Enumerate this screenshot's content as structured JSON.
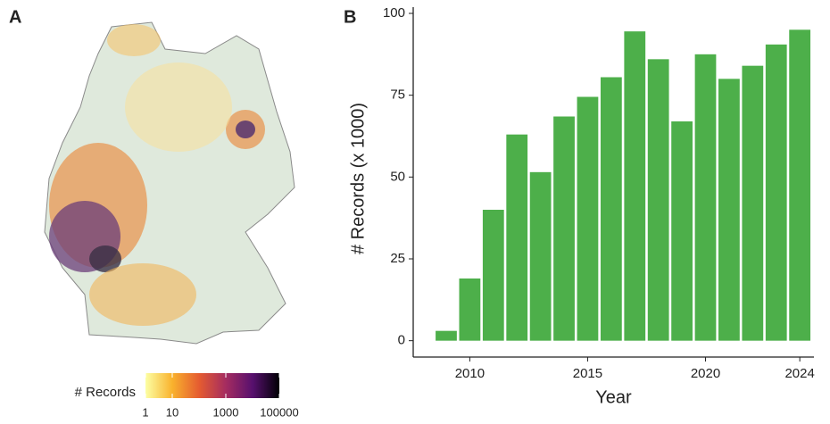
{
  "chart_data": [
    {
      "type": "hexmap",
      "panel": "A",
      "legend": {
        "title": "# Records",
        "lim": [
          1,
          100000
        ],
        "ticks": [
          1,
          10,
          1000,
          100000
        ],
        "log": true,
        "colors": [
          "#fcffa4",
          "#f9b22d",
          "#e55c30",
          "#a52c60",
          "#57106e",
          "#000004"
        ]
      }
    },
    {
      "type": "bar",
      "panel": "B",
      "xlabel": "Year",
      "ylabel": "# Records (x 1000)",
      "color": "#4daf4a",
      "x": [
        2009,
        2010,
        2011,
        2012,
        2013,
        2014,
        2015,
        2016,
        2017,
        2018,
        2019,
        2020,
        2021,
        2022,
        2023,
        2024
      ],
      "values": [
        3,
        19,
        40,
        63,
        51.5,
        68.5,
        74.5,
        80.5,
        94.5,
        86,
        67,
        87.5,
        80,
        84,
        90.5,
        95
      ],
      "xlim": [
        2007.6,
        2024.6
      ],
      "xticks": [
        2010,
        2015,
        2020,
        2024
      ],
      "ylim": [
        -5,
        100
      ],
      "yticks": [
        0,
        25,
        50,
        75,
        100
      ]
    }
  ]
}
